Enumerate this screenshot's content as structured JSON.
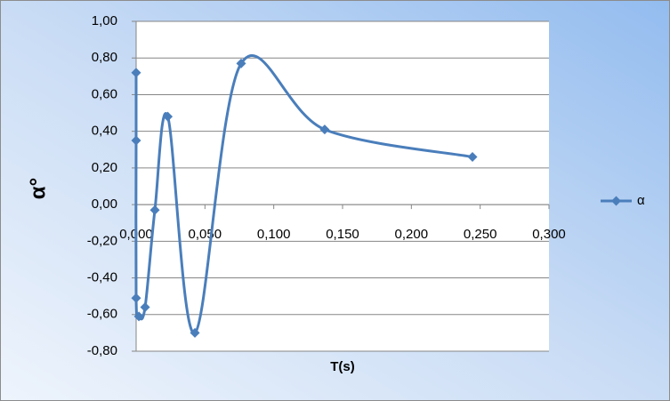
{
  "chart_data": {
    "type": "scatter",
    "x_label": "T(s)",
    "y_label": "α°",
    "series": [
      {
        "name": "α",
        "color": "#4a7ebb",
        "x": [
          0.0,
          0.0,
          0.0,
          0.002,
          0.0065,
          0.0136,
          0.023,
          0.0427,
          0.0763,
          0.137,
          0.2444
        ],
        "values": [
          0.72,
          0.35,
          -0.51,
          -0.61,
          -0.56,
          -0.03,
          0.48,
          -0.7,
          0.77,
          0.41,
          0.26
        ]
      }
    ],
    "smooth": true,
    "xlim": [
      0,
      0.3
    ],
    "xticks": [
      {
        "value": 0,
        "label": "0,000"
      },
      {
        "value": 0.05,
        "label": "0,050"
      },
      {
        "value": 0.1,
        "label": "0,100"
      },
      {
        "value": 0.15,
        "label": "0,150"
      },
      {
        "value": 0.2,
        "label": "0,200"
      },
      {
        "value": 0.25,
        "label": "0,250"
      },
      {
        "value": 0.3,
        "label": "0,300"
      }
    ],
    "ylim": [
      -0.8,
      1.0
    ],
    "yticks": [
      {
        "value": -0.8,
        "label": "-0,80"
      },
      {
        "value": -0.6,
        "label": "-0,60"
      },
      {
        "value": -0.4,
        "label": "-0,40"
      },
      {
        "value": -0.2,
        "label": "-0,20"
      },
      {
        "value": 0,
        "label": "0,00"
      },
      {
        "value": 0.2,
        "label": "0,20"
      },
      {
        "value": 0.4,
        "label": "0,40"
      },
      {
        "value": 0.6,
        "label": "0,60"
      },
      {
        "value": 0.8,
        "label": "0,80"
      },
      {
        "value": 1.0,
        "label": "1,00"
      }
    ],
    "grid": true,
    "legend": "right"
  }
}
